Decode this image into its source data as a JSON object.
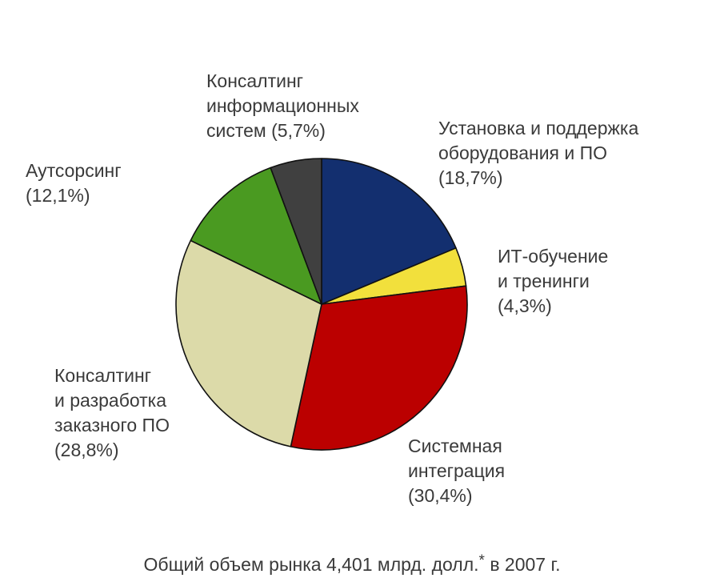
{
  "chart_data": {
    "type": "pie",
    "title": "",
    "slices": [
      {
        "label_lines": [
          "Установка и поддержка",
          "оборудования и ПО",
          "(18,7%)"
        ],
        "value": 18.7,
        "color": "#132f6f"
      },
      {
        "label_lines": [
          "ИТ-обучение",
          "и тренинги",
          "(4,3%)"
        ],
        "value": 4.3,
        "color": "#f2e03c"
      },
      {
        "label_lines": [
          "Системная",
          "интеграция",
          "(30,4%)"
        ],
        "value": 30.4,
        "color": "#bb0000"
      },
      {
        "label_lines": [
          "Консалтинг",
          "и разработка",
          "заказного ПО",
          "(28,8%)"
        ],
        "value": 28.8,
        "color": "#dcdaa9"
      },
      {
        "label_lines": [
          "Аутсорсинг",
          "(12,1%)"
        ],
        "value": 12.1,
        "color": "#4a9a21"
      },
      {
        "label_lines": [
          "Консалтинг",
          "информационных",
          "систем (5,7%)"
        ],
        "value": 5.7,
        "color": "#404040"
      }
    ],
    "start_angle": "12 o'clock",
    "direction": "clockwise",
    "legend": "none"
  },
  "caption": {
    "text_before": "Общий объем рынка 4,401 млрд. долл.",
    "superscript": "*",
    "text_after": " в 2007 г."
  }
}
